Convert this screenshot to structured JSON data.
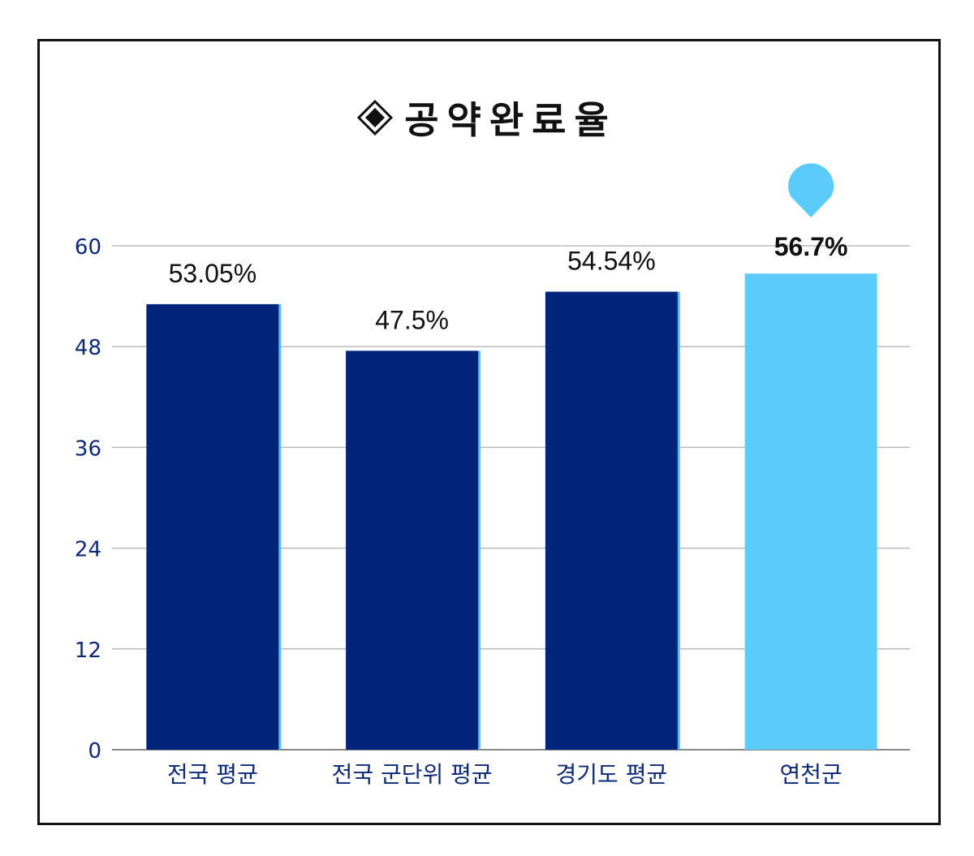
{
  "chart_data": {
    "type": "bar",
    "title": "공약완료율",
    "categories": [
      "전국 평균",
      "전국 군단위 평균",
      "경기도 평균",
      "연천군"
    ],
    "values": [
      53.05,
      47.5,
      54.54,
      56.7
    ],
    "value_labels": [
      "53.05%",
      "47.5%",
      "54.54%",
      "56.7%"
    ],
    "yticks": [
      "0",
      "12",
      "24",
      "36",
      "48",
      "60"
    ],
    "ylim": [
      0,
      60
    ],
    "grid": true,
    "xlabel": "",
    "ylabel": "",
    "highlight_index": 3,
    "colors": {
      "bar": "#02247a",
      "bar_edge": "#4fc3f7",
      "highlight": "#5bcbfc",
      "marker": "#5bcbfc",
      "grid": "#bbbbbb",
      "axis_text": "#0d2a7a",
      "title": "#111111"
    },
    "title_icon": "diamond-icon",
    "highlight_icon": "location-pin-icon"
  }
}
